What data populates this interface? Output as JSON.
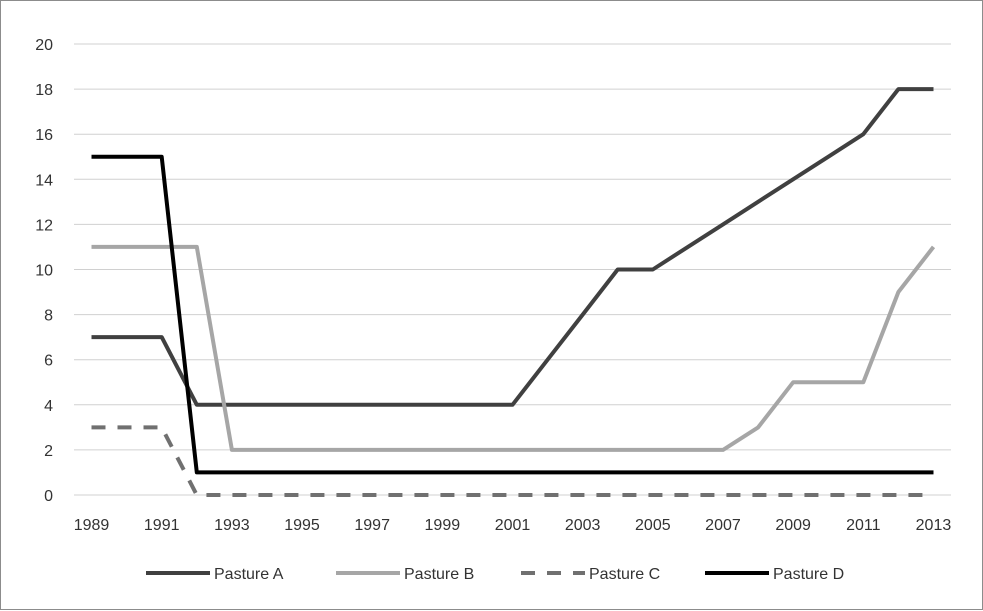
{
  "chart_data": {
    "type": "line",
    "title": "",
    "xlabel": "",
    "ylabel": "",
    "x": [
      1989,
      1990,
      1991,
      1992,
      1993,
      1994,
      1995,
      1996,
      1997,
      1998,
      1999,
      2000,
      2001,
      2002,
      2003,
      2004,
      2005,
      2006,
      2007,
      2008,
      2009,
      2010,
      2011,
      2012,
      2013
    ],
    "x_tick_labels": [
      "1989",
      "1991",
      "1993",
      "1995",
      "1997",
      "1999",
      "2001",
      "2003",
      "2005",
      "2007",
      "2009",
      "2011",
      "2013"
    ],
    "y_tick_labels": [
      "0",
      "2",
      "4",
      "6",
      "8",
      "10",
      "12",
      "14",
      "16",
      "18",
      "20"
    ],
    "ylim": [
      0,
      20
    ],
    "grid": "horizontal",
    "legend_position": "bottom",
    "series": [
      {
        "name": "Pasture A",
        "color": "#404040",
        "style": "solid",
        "values": [
          7,
          7,
          7,
          4,
          4,
          4,
          4,
          4,
          4,
          4,
          4,
          4,
          4,
          6,
          8,
          10,
          10,
          11,
          12,
          13,
          14,
          15,
          16,
          18,
          18
        ]
      },
      {
        "name": "Pasture B",
        "color": "#a6a6a6",
        "style": "solid",
        "values": [
          11,
          11,
          11,
          11,
          2,
          2,
          2,
          2,
          2,
          2,
          2,
          2,
          2,
          2,
          2,
          2,
          2,
          2,
          2,
          3,
          5,
          5,
          5,
          9,
          11
        ]
      },
      {
        "name": "Pasture C",
        "color": "#707070",
        "style": "dashed",
        "values": [
          3,
          3,
          3,
          0,
          0,
          0,
          0,
          0,
          0,
          0,
          0,
          0,
          0,
          0,
          0,
          0,
          0,
          0,
          0,
          0,
          0,
          0,
          0,
          0,
          0
        ]
      },
      {
        "name": "Pasture D",
        "color": "#000000",
        "style": "solid",
        "values": [
          15,
          15,
          15,
          1,
          1,
          1,
          1,
          1,
          1,
          1,
          1,
          1,
          1,
          1,
          1,
          1,
          1,
          1,
          1,
          1,
          1,
          1,
          1,
          1,
          1
        ]
      }
    ]
  }
}
